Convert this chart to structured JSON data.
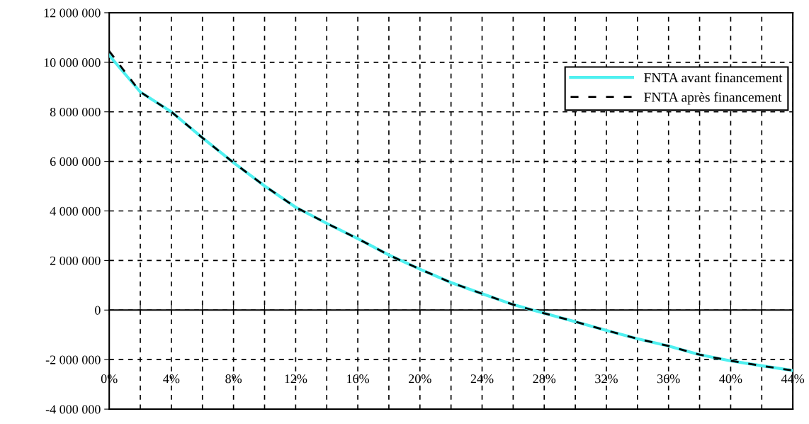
{
  "chart_data": {
    "type": "line",
    "x": [
      0,
      2,
      4,
      6,
      8,
      10,
      12,
      14,
      16,
      18,
      20,
      22,
      24,
      26,
      28,
      30,
      32,
      34,
      36,
      38,
      40,
      42,
      44
    ],
    "series": [
      {
        "name": "FNTA avant financement",
        "color": "#4ff0f0",
        "line_style": "solid",
        "values": [
          10280000,
          8800000,
          8000000,
          6950000,
          5950000,
          5010000,
          4150000,
          3500000,
          2880000,
          2220000,
          1650000,
          1110000,
          660000,
          220000,
          -130000,
          -470000,
          -820000,
          -1160000,
          -1450000,
          -1800000,
          -2050000,
          -2250000,
          -2440000
        ]
      },
      {
        "name": "FNTA après financement",
        "color": "#000000",
        "line_style": "dashed",
        "values": [
          10450000,
          8800000,
          8000000,
          6950000,
          5950000,
          5010000,
          4150000,
          3500000,
          2880000,
          2220000,
          1650000,
          1110000,
          660000,
          220000,
          -130000,
          -470000,
          -820000,
          -1160000,
          -1450000,
          -1800000,
          -2050000,
          -2250000,
          -2440000
        ]
      }
    ],
    "xlim": [
      0,
      44
    ],
    "xticks": [
      {
        "value": 0,
        "label": "0%"
      },
      {
        "value": 2,
        "label": null
      },
      {
        "value": 4,
        "label": "4%"
      },
      {
        "value": 6,
        "label": null
      },
      {
        "value": 8,
        "label": "8%"
      },
      {
        "value": 10,
        "label": null
      },
      {
        "value": 12,
        "label": "12%"
      },
      {
        "value": 14,
        "label": null
      },
      {
        "value": 16,
        "label": "16%"
      },
      {
        "value": 18,
        "label": null
      },
      {
        "value": 20,
        "label": "20%"
      },
      {
        "value": 22,
        "label": null
      },
      {
        "value": 24,
        "label": "24%"
      },
      {
        "value": 26,
        "label": null
      },
      {
        "value": 28,
        "label": "28%"
      },
      {
        "value": 30,
        "label": null
      },
      {
        "value": 32,
        "label": "32%"
      },
      {
        "value": 34,
        "label": null
      },
      {
        "value": 36,
        "label": "36%"
      },
      {
        "value": 38,
        "label": null
      },
      {
        "value": 40,
        "label": "40%"
      },
      {
        "value": 42,
        "label": null
      },
      {
        "value": 44,
        "label": "44%"
      }
    ],
    "ylim": [
      -4000000,
      12000000
    ],
    "yticks": [
      {
        "value": -4000000,
        "label": "-4 000 000"
      },
      {
        "value": -2000000,
        "label": "-2 000 000"
      },
      0,
      {
        "value": 2000000,
        "label": "2 000 000"
      },
      {
        "value": 4000000,
        "label": "4 000 000"
      },
      {
        "value": 6000000,
        "label": "6 000 000"
      },
      {
        "value": 8000000,
        "label": "8 000 000"
      },
      {
        "value": 10000000,
        "label": "10 000 000"
      },
      {
        "value": 12000000,
        "label": "12 000 000"
      }
    ],
    "grid": true,
    "legend": "top right",
    "marker": "none"
  }
}
